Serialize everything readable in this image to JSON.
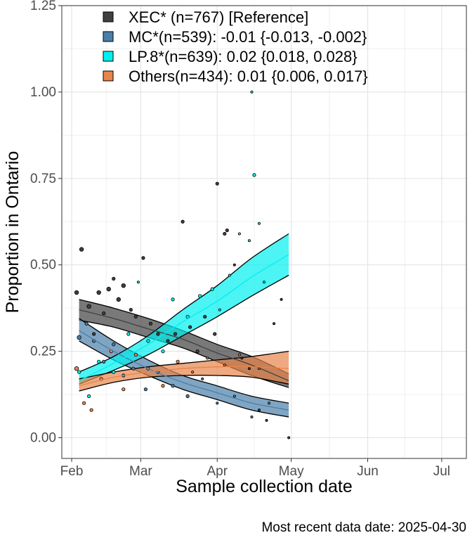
{
  "chart_data": {
    "type": "line",
    "title": "",
    "xlabel": "Sample collection date",
    "ylabel": "Proportion in Ontario",
    "caption": "Most recent data date: 2025-04-30",
    "x_ticks": [
      "2025-02-01",
      "2025-03-01",
      "2025-04-01",
      "2025-05-01",
      "2025-06-01",
      "2025-07-01"
    ],
    "x_tick_labels": [
      "Feb",
      "Mar",
      "Apr",
      "May",
      "Jun",
      "Jul"
    ],
    "xlim": [
      "2025-01-28",
      "2025-07-11"
    ],
    "y_ticks": [
      0,
      0.25,
      0.5,
      0.75,
      1.0,
      1.25
    ],
    "y_tick_labels": [
      "0.00",
      "0.25",
      "0.50",
      "0.75",
      "1.00",
      "1.25"
    ],
    "ylim": [
      -0.06,
      1.25
    ],
    "grid": true,
    "legend_position": "top-left",
    "series": [
      {
        "name": "XEC*",
        "legend": "XEC* (n=767)  [Reference]",
        "color": "#404040",
        "x": [
          "2025-02-04",
          "2025-02-18",
          "2025-03-04",
          "2025-03-18",
          "2025-04-01",
          "2025-04-15",
          "2025-04-30"
        ],
        "fit": [
          0.37,
          0.345,
          0.315,
          0.285,
          0.245,
          0.21,
          0.165
        ],
        "lower": [
          0.34,
          0.32,
          0.29,
          0.26,
          0.22,
          0.18,
          0.145
        ],
        "upper": [
          0.4,
          0.375,
          0.345,
          0.31,
          0.27,
          0.235,
          0.185
        ],
        "points": [
          {
            "x": "2025-02-03",
            "y": 0.42,
            "size": 3
          },
          {
            "x": "2025-02-05",
            "y": 0.545,
            "size": 3
          },
          {
            "x": "2025-02-08",
            "y": 0.38,
            "size": 3
          },
          {
            "x": "2025-02-10",
            "y": 0.3,
            "size": 2
          },
          {
            "x": "2025-02-12",
            "y": 0.42,
            "size": 3
          },
          {
            "x": "2025-02-14",
            "y": 0.36,
            "size": 2
          },
          {
            "x": "2025-02-16",
            "y": 0.43,
            "size": 3
          },
          {
            "x": "2025-02-18",
            "y": 0.46,
            "size": 2
          },
          {
            "x": "2025-02-20",
            "y": 0.4,
            "size": 3
          },
          {
            "x": "2025-02-22",
            "y": 0.44,
            "size": 3
          },
          {
            "x": "2025-02-25",
            "y": 0.37,
            "size": 2
          },
          {
            "x": "2025-02-27",
            "y": 0.35,
            "size": 2
          },
          {
            "x": "2025-03-02",
            "y": 0.52,
            "size": 2
          },
          {
            "x": "2025-03-05",
            "y": 0.33,
            "size": 2
          },
          {
            "x": "2025-03-08",
            "y": 0.3,
            "size": 2
          },
          {
            "x": "2025-03-12",
            "y": 0.28,
            "size": 2
          },
          {
            "x": "2025-03-15",
            "y": 0.3,
            "size": 2
          },
          {
            "x": "2025-03-18",
            "y": 0.625,
            "size": 2
          },
          {
            "x": "2025-03-21",
            "y": 0.32,
            "size": 2
          },
          {
            "x": "2025-03-24",
            "y": 0.25,
            "size": 2
          },
          {
            "x": "2025-03-27",
            "y": 0.35,
            "size": 2
          },
          {
            "x": "2025-03-31",
            "y": 0.3,
            "size": 2
          },
          {
            "x": "2025-04-01",
            "y": 0.735,
            "size": 2
          },
          {
            "x": "2025-04-04",
            "y": 0.59,
            "size": 2
          },
          {
            "x": "2025-04-05",
            "y": 0.6,
            "size": 2
          },
          {
            "x": "2025-04-08",
            "y": 0.5,
            "size": 1
          },
          {
            "x": "2025-04-11",
            "y": 0.23,
            "size": 1
          },
          {
            "x": "2025-04-14",
            "y": 0.2,
            "size": 1
          },
          {
            "x": "2025-04-18",
            "y": 0.08,
            "size": 1
          },
          {
            "x": "2025-04-21",
            "y": 0.05,
            "size": 1
          },
          {
            "x": "2025-04-24",
            "y": 0.33,
            "size": 1
          },
          {
            "x": "2025-04-27",
            "y": 0.4,
            "size": 1
          },
          {
            "x": "2025-04-30",
            "y": 0.0,
            "size": 1
          }
        ]
      },
      {
        "name": "MC*",
        "legend": "MC*(n=539): -0.01 {-0.013, -0.002}",
        "color": "#4a7fa8",
        "x": [
          "2025-02-04",
          "2025-02-18",
          "2025-03-04",
          "2025-03-18",
          "2025-04-01",
          "2025-04-15",
          "2025-04-30"
        ],
        "fit": [
          0.31,
          0.25,
          0.2,
          0.16,
          0.13,
          0.1,
          0.08
        ],
        "lower": [
          0.28,
          0.225,
          0.18,
          0.14,
          0.11,
          0.08,
          0.06
        ],
        "upper": [
          0.345,
          0.28,
          0.225,
          0.18,
          0.15,
          0.12,
          0.1
        ],
        "points": [
          {
            "x": "2025-02-04",
            "y": 0.29,
            "size": 3
          },
          {
            "x": "2025-02-07",
            "y": 0.33,
            "size": 2
          },
          {
            "x": "2025-02-10",
            "y": 0.28,
            "size": 2
          },
          {
            "x": "2025-02-14",
            "y": 0.22,
            "size": 2
          },
          {
            "x": "2025-02-18",
            "y": 0.27,
            "size": 2
          },
          {
            "x": "2025-02-22",
            "y": 0.18,
            "size": 2
          },
          {
            "x": "2025-02-26",
            "y": 0.2,
            "size": 2
          },
          {
            "x": "2025-03-03",
            "y": 0.14,
            "size": 2
          },
          {
            "x": "2025-03-08",
            "y": 0.19,
            "size": 2
          },
          {
            "x": "2025-03-14",
            "y": 0.15,
            "size": 2
          },
          {
            "x": "2025-03-20",
            "y": 0.12,
            "size": 2
          },
          {
            "x": "2025-03-26",
            "y": 0.17,
            "size": 1
          },
          {
            "x": "2025-04-01",
            "y": 0.1,
            "size": 1
          },
          {
            "x": "2025-04-08",
            "y": 0.12,
            "size": 1
          },
          {
            "x": "2025-04-15",
            "y": 0.06,
            "size": 1
          },
          {
            "x": "2025-04-22",
            "y": 0.1,
            "size": 1
          }
        ]
      },
      {
        "name": "LP.8*",
        "legend": "LP.8*(n=639): 0.02 {0.018, 0.028}",
        "color": "#00f0f0",
        "x": [
          "2025-02-04",
          "2025-02-18",
          "2025-03-04",
          "2025-03-18",
          "2025-04-01",
          "2025-04-15",
          "2025-04-30"
        ],
        "fit": [
          0.165,
          0.215,
          0.27,
          0.335,
          0.395,
          0.465,
          0.53
        ],
        "lower": [
          0.155,
          0.195,
          0.24,
          0.295,
          0.35,
          0.41,
          0.47
        ],
        "upper": [
          0.19,
          0.235,
          0.295,
          0.37,
          0.44,
          0.52,
          0.59
        ],
        "points": [
          {
            "x": "2025-02-04",
            "y": 0.19,
            "size": 2
          },
          {
            "x": "2025-02-08",
            "y": 0.12,
            "size": 2
          },
          {
            "x": "2025-02-12",
            "y": 0.22,
            "size": 2
          },
          {
            "x": "2025-02-18",
            "y": 0.19,
            "size": 2
          },
          {
            "x": "2025-02-24",
            "y": 0.3,
            "size": 2
          },
          {
            "x": "2025-02-28",
            "y": 0.45,
            "size": 1
          },
          {
            "x": "2025-03-04",
            "y": 0.28,
            "size": 2
          },
          {
            "x": "2025-03-10",
            "y": 0.25,
            "size": 2
          },
          {
            "x": "2025-03-14",
            "y": 0.4,
            "size": 2
          },
          {
            "x": "2025-03-20",
            "y": 0.35,
            "size": 2
          },
          {
            "x": "2025-03-25",
            "y": 0.41,
            "size": 2
          },
          {
            "x": "2025-03-30",
            "y": 0.43,
            "size": 2
          },
          {
            "x": "2025-04-02",
            "y": 0.37,
            "size": 1
          },
          {
            "x": "2025-04-06",
            "y": 0.47,
            "size": 1
          },
          {
            "x": "2025-04-10",
            "y": 0.59,
            "size": 1
          },
          {
            "x": "2025-04-14",
            "y": 0.57,
            "size": 1
          },
          {
            "x": "2025-04-16",
            "y": 0.76,
            "size": 2
          },
          {
            "x": "2025-04-18",
            "y": 0.62,
            "size": 1
          },
          {
            "x": "2025-04-20",
            "y": 0.45,
            "size": 1
          },
          {
            "x": "2025-04-15",
            "y": 1.0,
            "size": 1
          }
        ]
      },
      {
        "name": "Others",
        "legend": "Others(n=434): 0.01 {0.006, 0.017}",
        "color": "#e8854a",
        "x": [
          "2025-02-04",
          "2025-02-18",
          "2025-03-04",
          "2025-03-18",
          "2025-04-01",
          "2025-04-15",
          "2025-04-30"
        ],
        "fit": [
          0.15,
          0.175,
          0.19,
          0.2,
          0.205,
          0.205,
          0.2
        ],
        "lower": [
          0.135,
          0.16,
          0.175,
          0.18,
          0.18,
          0.175,
          0.155
        ],
        "upper": [
          0.17,
          0.19,
          0.205,
          0.215,
          0.225,
          0.235,
          0.25
        ],
        "points": [
          {
            "x": "2025-02-03",
            "y": 0.2,
            "size": 3
          },
          {
            "x": "2025-02-06",
            "y": 0.1,
            "size": 2
          },
          {
            "x": "2025-02-09",
            "y": 0.08,
            "size": 2
          },
          {
            "x": "2025-02-13",
            "y": 0.17,
            "size": 2
          },
          {
            "x": "2025-02-17",
            "y": 0.25,
            "size": 2
          },
          {
            "x": "2025-02-22",
            "y": 0.14,
            "size": 2
          },
          {
            "x": "2025-02-27",
            "y": 0.24,
            "size": 2
          },
          {
            "x": "2025-03-04",
            "y": 0.2,
            "size": 2
          },
          {
            "x": "2025-03-10",
            "y": 0.15,
            "size": 2
          },
          {
            "x": "2025-03-16",
            "y": 0.22,
            "size": 2
          },
          {
            "x": "2025-03-22",
            "y": 0.19,
            "size": 1
          },
          {
            "x": "2025-03-28",
            "y": 0.23,
            "size": 1
          },
          {
            "x": "2025-04-04",
            "y": 0.21,
            "size": 1
          },
          {
            "x": "2025-04-10",
            "y": 0.24,
            "size": 1
          },
          {
            "x": "2025-04-18",
            "y": 0.2,
            "size": 1
          }
        ]
      }
    ]
  }
}
